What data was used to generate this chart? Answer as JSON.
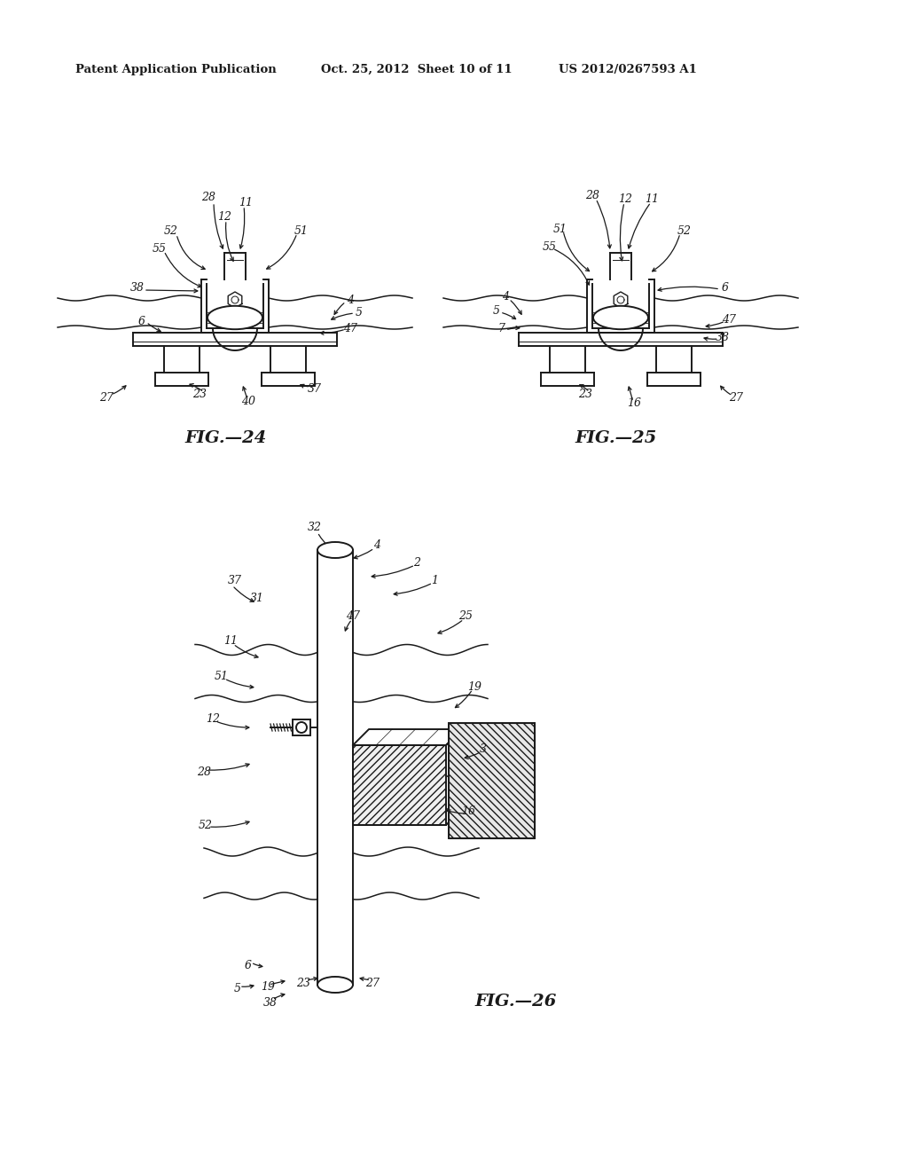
{
  "bg_color": "#ffffff",
  "header_left": "Patent Application Publication",
  "header_mid": "Oct. 25, 2012  Sheet 10 of 11",
  "header_right": "US 2012/0267593 A1",
  "fig24_label": "FIG.—24",
  "fig25_label": "FIG.—25",
  "fig26_label": "FIG.—26",
  "text_color": "#1a1a1a",
  "line_color": "#1a1a1a"
}
